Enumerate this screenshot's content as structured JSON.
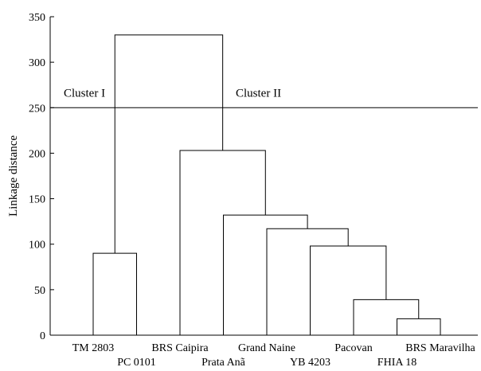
{
  "chart_data": {
    "type": "dendrogram",
    "title": "",
    "xlabel": "",
    "ylabel": "Linkage distance",
    "ylim": [
      0,
      350
    ],
    "yticks": [
      0,
      50,
      100,
      150,
      200,
      250,
      300,
      350
    ],
    "grid": false,
    "leaves": [
      "TM 2803",
      "PC 0101",
      "BRS Caipira",
      "Prata Anã",
      "Grand Naine",
      "YB 4203",
      "Pacovan",
      "FHIA 18",
      "BRS Maravilha"
    ],
    "merges": [
      {
        "left": [
          7
        ],
        "right": [
          8
        ],
        "height": 18
      },
      {
        "left": [
          6
        ],
        "right": [
          7,
          8
        ],
        "height": 39
      },
      {
        "left": [
          0
        ],
        "right": [
          1
        ],
        "height": 90
      },
      {
        "left": [
          5
        ],
        "right": [
          6,
          7,
          8
        ],
        "height": 98
      },
      {
        "left": [
          4
        ],
        "right": [
          5,
          6,
          7,
          8
        ],
        "height": 117
      },
      {
        "left": [
          3
        ],
        "right": [
          4,
          5,
          6,
          7,
          8
        ],
        "height": 132
      },
      {
        "left": [
          2
        ],
        "right": [
          3,
          4,
          5,
          6,
          7,
          8
        ],
        "height": 203
      },
      {
        "left": [
          0,
          1
        ],
        "right": [
          2,
          3,
          4,
          5,
          6,
          7,
          8
        ],
        "height": 330
      }
    ],
    "cutoff": 250,
    "clusters": [
      {
        "label": "Cluster I"
      },
      {
        "label": "Cluster II"
      }
    ]
  }
}
